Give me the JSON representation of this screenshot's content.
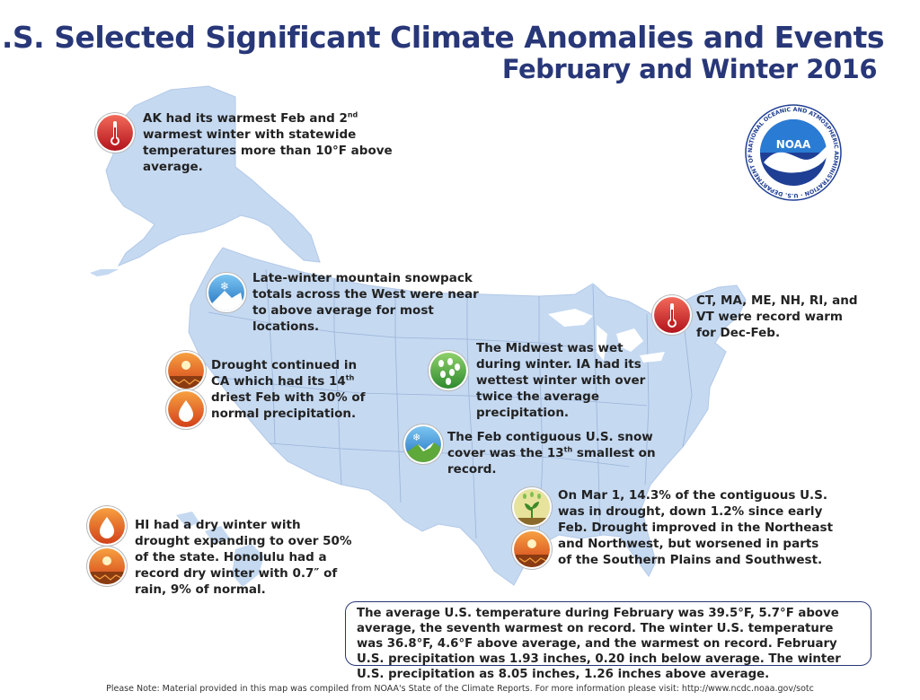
{
  "header": {
    "title": "U.S. Selected Significant Climate Anomalies and Events",
    "subtitle": "February and Winter 2016"
  },
  "colors": {
    "title": "#283778",
    "land": "#c5d9f1",
    "state_border": "#9ab4d8",
    "noaa_blue": "#1f3f95",
    "noaa_sky": "#2a7bd3"
  },
  "logo": {
    "name": "NOAA",
    "ring_text": "NATIONAL OCEANIC AND ATMOSPHERIC ADMINISTRATION · U.S. DEPARTMENT OF COMMERCE"
  },
  "events": {
    "alaska": {
      "icon": "thermometer-warm-icon",
      "pre": "AK had its warmest Feb and 2",
      "sup": "nd",
      "post": " warmest winter with statewide temperatures more than 10°F above average."
    },
    "snowpack": {
      "icon": "mountain-snow-icon",
      "text": "Late-winter mountain snowpack totals across the West were near to above average for most locations."
    },
    "northeast": {
      "icon": "thermometer-warm-icon",
      "text": "CT, MA, ME, NH, RI, and VT were record warm for Dec-Feb."
    },
    "california": {
      "icons": [
        "drought-cracked-earth-icon",
        "dry-droplet-icon"
      ],
      "pre": "Drought continued in CA which had its 14",
      "sup": "th",
      "post": " driest Feb with 30% of normal precipitation."
    },
    "midwest": {
      "icon": "rain-drops-icon",
      "text": "The Midwest was wet during winter. IA had its wettest winter with over twice the average precipitation."
    },
    "snow_cover": {
      "icon": "snow-cover-icon",
      "pre": "The Feb contiguous U.S. snow cover was the 13",
      "sup": "th",
      "post": " smallest on record."
    },
    "drought": {
      "icons": [
        "drought-improved-sprout-icon",
        "drought-cracked-earth-icon"
      ],
      "text": "On Mar 1, 14.3% of the contiguous U.S. was in drought, down 1.2% since early Feb. Drought improved in the Northeast and Northwest, but worsened in parts of the Southern Plains and Southwest."
    },
    "hawaii": {
      "icons": [
        "dry-droplet-icon",
        "drought-cracked-earth-icon"
      ],
      "text": "HI had a dry winter with drought expanding to over 50% of the state. Honolulu had a record dry winter with 0.7″ of rain, 9% of normal."
    }
  },
  "summary": {
    "text": "The average U.S. temperature during February was 39.5°F, 5.7°F above average, the seventh warmest on record. The winter U.S. temperature was 36.8°F, 4.6°F above average, and the warmest on record. February U.S. precipitation was 1.93 inches, 0.20 inch below average. The winter U.S. precipitation as 8.05 inches, 1.26 inches above average."
  },
  "footer": {
    "note": "Please Note: Material provided in this map was compiled from NOAA's State of the Climate Reports. For more information please visit: http://www.ncdc.noaa.gov/sotc"
  }
}
